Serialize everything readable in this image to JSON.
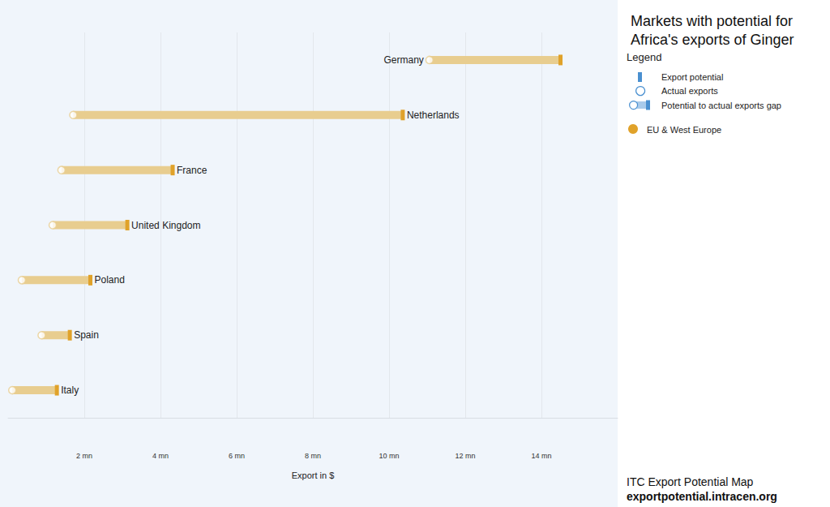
{
  "chart_data": {
    "type": "dumbbell",
    "title": "Markets with potential for Africa's exports of Ginger",
    "orientation": "horizontal",
    "categories": [
      "Germany",
      "Netherlands",
      "France",
      "United Kingdom",
      "Poland",
      "Spain",
      "Italy"
    ],
    "series": [
      {
        "name": "Export potential",
        "values": [
          14500000,
          10360000,
          4320000,
          3130000,
          2160000,
          1620000,
          1280000
        ]
      },
      {
        "name": "Actual exports",
        "values": [
          11060000,
          1710000,
          1400000,
          1170000,
          360000,
          880000,
          110000
        ]
      }
    ],
    "gap_label": "Potential to actual exports gap",
    "legend_title": "Legend",
    "group": "EU & West Europe",
    "color": "#e0a22a",
    "xlabel": "Export in $",
    "xlim": [
      0,
      16000000
    ],
    "xticks": [
      {
        "value": 2000000,
        "label": "2 mn"
      },
      {
        "value": 4000000,
        "label": "4 mn"
      },
      {
        "value": 6000000,
        "label": "6 mn"
      },
      {
        "value": 8000000,
        "label": "8 mn"
      },
      {
        "value": 10000000,
        "label": "10 mn"
      },
      {
        "value": 12000000,
        "label": "12 mn"
      },
      {
        "value": 14000000,
        "label": "14 mn"
      }
    ],
    "grid": true,
    "legend": "right",
    "tick_labels": "x",
    "source": [
      "ITC Export Potential Map",
      "exportpotential.intracen.org"
    ]
  }
}
